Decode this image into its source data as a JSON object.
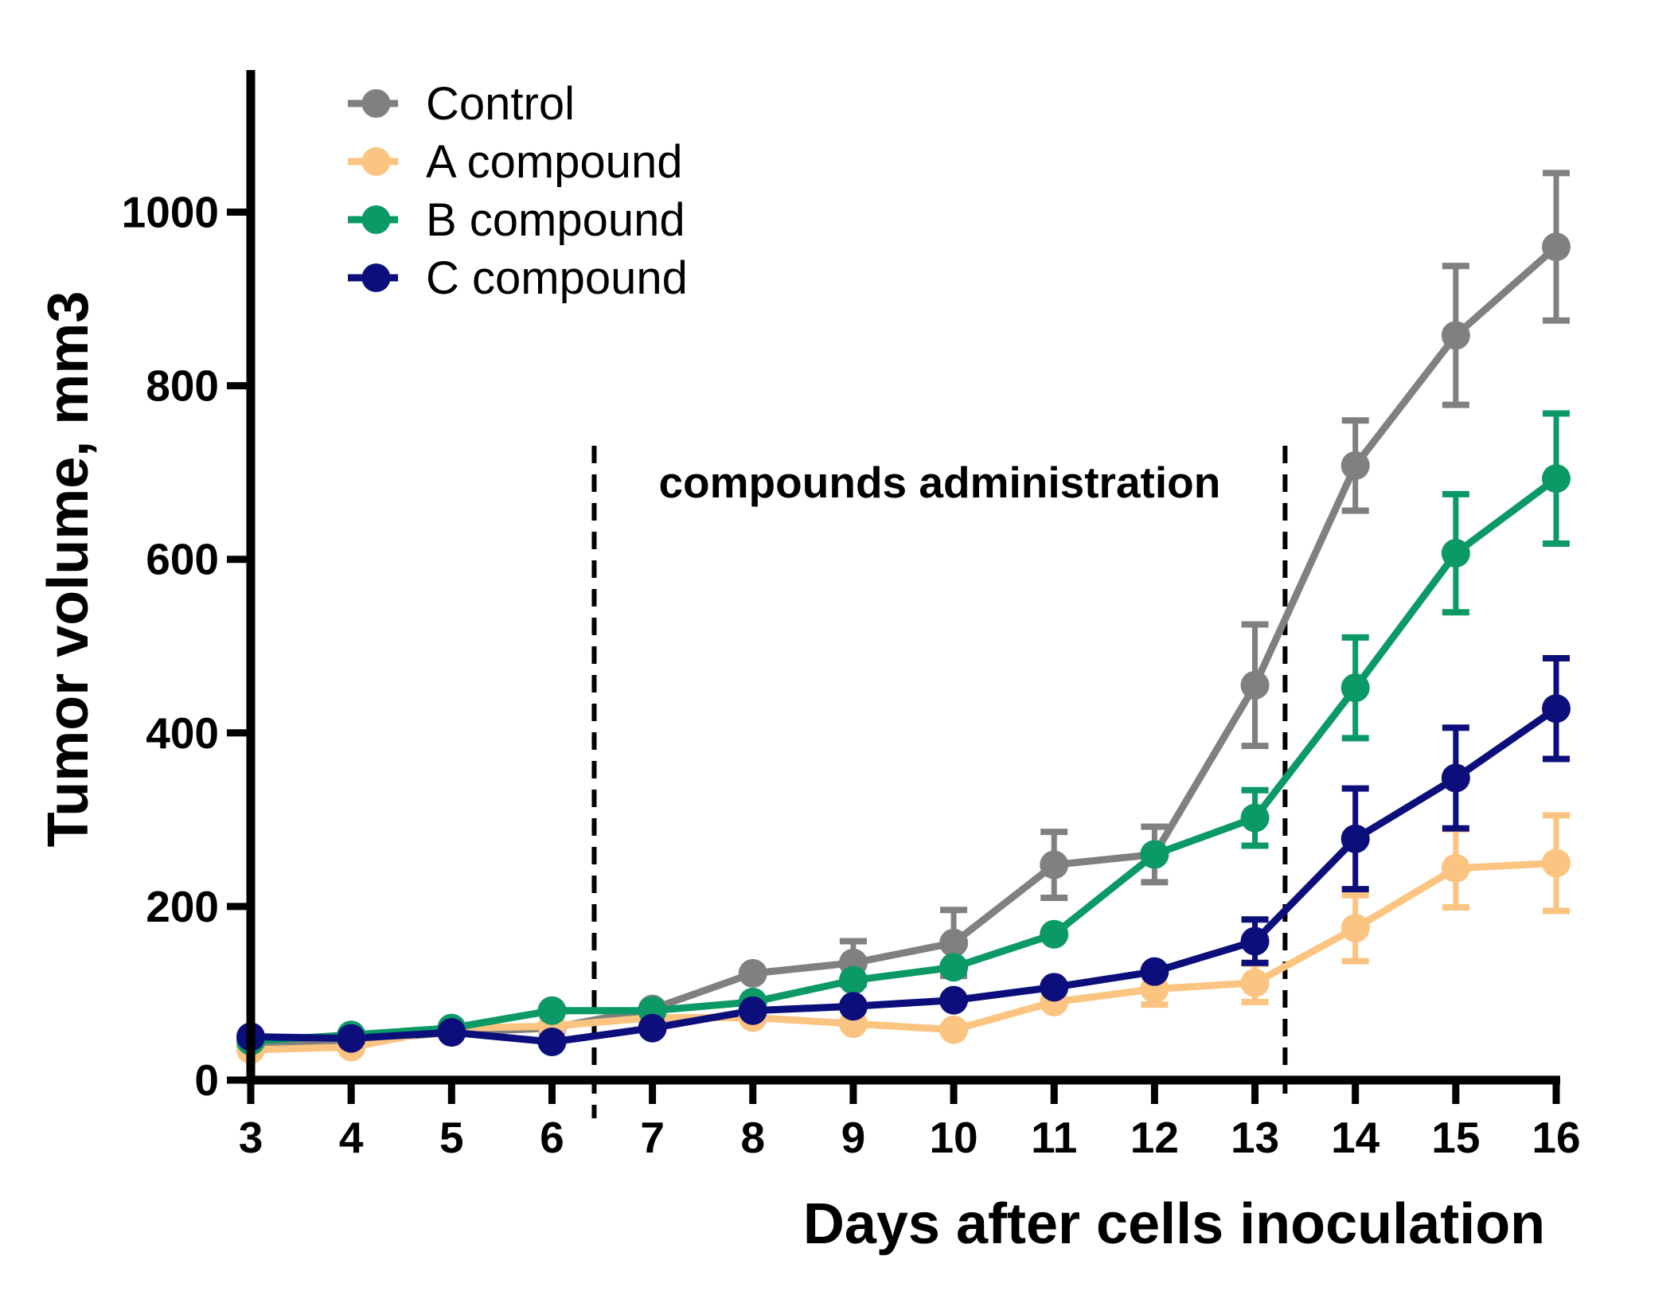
{
  "chart_data": {
    "type": "line",
    "title": "",
    "xlabel": "Days after cells inoculation",
    "ylabel": "Tumor volume, mm3",
    "x": [
      3,
      4,
      5,
      6,
      7,
      8,
      9,
      10,
      11,
      12,
      13,
      14,
      15,
      16
    ],
    "xlim": [
      3,
      16
    ],
    "ylim": [
      0,
      1160
    ],
    "yticks": [
      0,
      200,
      400,
      600,
      800,
      1000
    ],
    "grid": false,
    "legend_position": "top-left",
    "error_bars": true,
    "series": [
      {
        "name": "Control",
        "color": "#808080",
        "values": [
          38,
          45,
          55,
          60,
          82,
          123,
          135,
          158,
          248,
          260,
          455,
          708,
          858,
          960
        ],
        "errors": [
          0,
          0,
          0,
          0,
          0,
          0,
          25,
          38,
          38,
          32,
          70,
          52,
          80,
          85
        ]
      },
      {
        "name": "A compound",
        "color": "#FCC481",
        "values": [
          35,
          38,
          60,
          62,
          72,
          72,
          65,
          58,
          90,
          105,
          112,
          175,
          244,
          250
        ],
        "errors": [
          0,
          0,
          0,
          0,
          0,
          0,
          0,
          0,
          0,
          18,
          22,
          38,
          45,
          55
        ]
      },
      {
        "name": "B compound",
        "color": "#0B9966",
        "values": [
          45,
          52,
          60,
          80,
          80,
          90,
          115,
          130,
          168,
          260,
          302,
          452,
          607,
          693
        ],
        "errors": [
          0,
          0,
          0,
          0,
          0,
          0,
          0,
          0,
          0,
          0,
          32,
          58,
          68,
          75
        ]
      },
      {
        "name": "C compound",
        "color": "#0C0E7C",
        "values": [
          50,
          48,
          55,
          44,
          60,
          80,
          85,
          92,
          107,
          125,
          160,
          278,
          348,
          428
        ],
        "errors": [
          0,
          0,
          0,
          0,
          0,
          0,
          0,
          0,
          0,
          0,
          25,
          58,
          58,
          58
        ]
      }
    ],
    "annotations": [
      {
        "text": "compounds administration",
        "x_start": 6.42,
        "x_end": 13.3
      }
    ]
  }
}
